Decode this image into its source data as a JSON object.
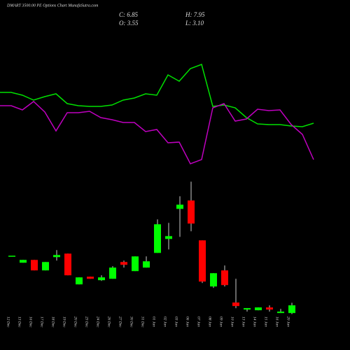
{
  "chart_data": [
    {
      "type": "line",
      "title": "DMART 3500.00 PE Options  Chart MunafaSutra.com",
      "annotations": [
        "C: 6.85",
        "H: 7.95",
        "O: 3.55",
        "L: 3.10"
      ],
      "x": [
        0,
        1,
        2,
        3,
        4,
        5,
        6,
        7,
        8,
        9,
        10,
        11,
        12,
        13,
        14,
        15,
        16,
        17,
        18,
        19,
        20,
        21,
        22,
        23,
        24,
        25,
        26,
        27,
        28
      ],
      "xlim": [
        0,
        28
      ],
      "ylim": [
        0,
        100
      ],
      "series": [
        {
          "color": "#00e000",
          "values": [
            59,
            59,
            57,
            53.5,
            56,
            58,
            51,
            49.5,
            49,
            49,
            50,
            53.5,
            55,
            58,
            57,
            71.5,
            67,
            76,
            79,
            49,
            50,
            48,
            41,
            36.5,
            36,
            36,
            35,
            34.5,
            37
          ]
        },
        {
          "color": "#c000c0",
          "values": [
            49.5,
            49.5,
            46.5,
            52.5,
            45,
            31.5,
            44.5,
            44.5,
            45.5,
            41,
            39.5,
            37.5,
            37.5,
            31,
            32.5,
            23,
            23.5,
            8,
            11,
            48,
            51,
            38.5,
            40,
            47,
            46,
            46.5,
            36,
            29,
            11
          ]
        }
      ]
    },
    {
      "type": "candlestick",
      "categories": [
        "12 Dec",
        "13 Dec",
        "16 Dec",
        "17 Dec",
        "18 Dec",
        "19 Dec",
        "20 Dec",
        "23 Dec",
        "24 Dec",
        "26 Dec",
        "27 Dec",
        "30 Dec",
        "31 Dec",
        "01 Jan",
        "02 Jan",
        "03 Jan",
        "06 Jan",
        "07 Jan",
        "08 Jan",
        "09 Jan",
        "10 Jan",
        "13 Jan",
        "14 Jan",
        "15 Jan",
        "16 Jan",
        "20 Jan"
      ],
      "open": [
        28.15,
        25.15,
        26.35,
        21.85,
        27.55,
        29.05,
        15.85,
        19.15,
        17.65,
        18.25,
        25.45,
        21.55,
        23.05,
        29.35,
        35.35,
        48.25,
        51.85,
        34.75,
        14.95,
        21.85,
        8.05,
        5.05,
        4.75,
        5.95,
        3.55,
        3.55
      ],
      "high": [
        28.15,
        26.35,
        26.35,
        25.45,
        30.55,
        29.05,
        18.85,
        19.15,
        19.75,
        23.65,
        26.05,
        27.85,
        27.85,
        43.75,
        42.25,
        53.65,
        59.95,
        34.75,
        20.65,
        23.95,
        18.25,
        5.65,
        5.95,
        6.85,
        5.35,
        7.95
      ],
      "low": [
        28.15,
        25.15,
        21.85,
        21.85,
        26.05,
        19.75,
        15.85,
        18.25,
        17.35,
        18.25,
        23.05,
        21.55,
        23.05,
        29.35,
        30.85,
        36.25,
        38.65,
        16.45,
        14.35,
        14.95,
        5.65,
        4.15,
        4.75,
        4.15,
        3.55,
        3.1
      ],
      "close": [
        28.15,
        26.35,
        21.85,
        25.45,
        28.45,
        19.75,
        18.85,
        18.25,
        18.85,
        23.05,
        24.25,
        27.85,
        25.75,
        41.65,
        36.55,
        50.05,
        41.95,
        17.05,
        20.65,
        15.55,
        6.55,
        5.65,
        5.95,
        5.05,
        4.15,
        6.85
      ],
      "up_color": "#00ff00",
      "down_color": "#ff0000",
      "ylim": [
        0,
        70
      ]
    }
  ]
}
